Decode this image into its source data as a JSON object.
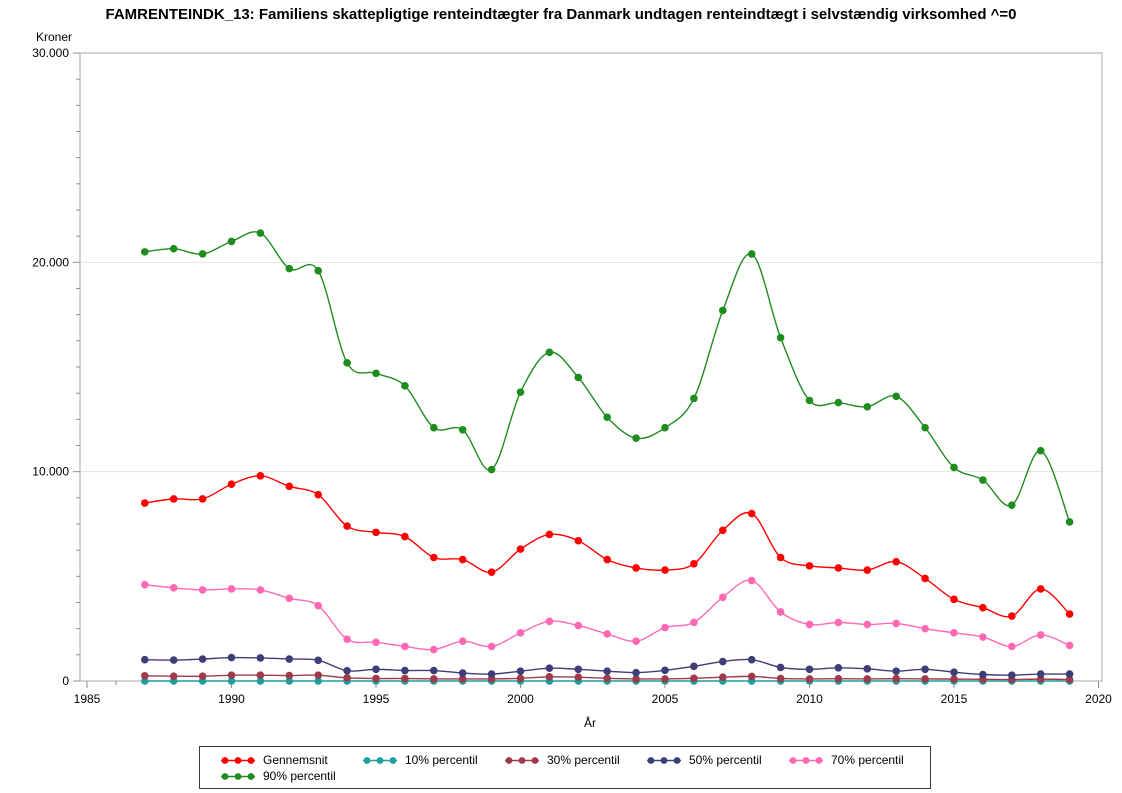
{
  "title": "FAMRENTEINDK_13: Familiens skattepligtige renteindtægter fra Danmark undtagen renteindtægt i selvstændig virksomhed ^=0",
  "chart_data": {
    "type": "line",
    "xlabel": "År",
    "ylabel": "Kroner",
    "xlim": [
      1985,
      2020
    ],
    "ylim": [
      0,
      30000
    ],
    "grid": true,
    "legend_position": "bottom",
    "x_ticks": [
      {
        "value": 1985,
        "label": "1985"
      },
      {
        "value": 1990,
        "label": "1990"
      },
      {
        "value": 1995,
        "label": "1995"
      },
      {
        "value": 2000,
        "label": "2000"
      },
      {
        "value": 2005,
        "label": "2005"
      },
      {
        "value": 2010,
        "label": "2010"
      },
      {
        "value": 2015,
        "label": "2015"
      },
      {
        "value": 2020,
        "label": "2020"
      }
    ],
    "y_ticks": [
      {
        "value": 0,
        "label": "0"
      },
      {
        "value": 10000,
        "label": "10.000"
      },
      {
        "value": 20000,
        "label": "20.000"
      },
      {
        "value": 30000,
        "label": "30.000"
      }
    ],
    "minor_x_step": 1,
    "minor_y_step": 1250,
    "x": [
      1987,
      1988,
      1989,
      1990,
      1991,
      1992,
      1993,
      1994,
      1995,
      1996,
      1997,
      1998,
      1999,
      2000,
      2001,
      2002,
      2003,
      2004,
      2005,
      2006,
      2007,
      2008,
      2009,
      2010,
      2011,
      2012,
      2013,
      2014,
      2015,
      2016,
      2017,
      2018,
      2019
    ],
    "series": [
      {
        "name": "Gennemsnit",
        "color": "#fe0000",
        "values": [
          8500,
          8700,
          8700,
          9400,
          9800,
          9300,
          8900,
          7400,
          7100,
          6900,
          5900,
          5800,
          5200,
          6300,
          7000,
          6700,
          5800,
          5400,
          5300,
          5600,
          7200,
          8000,
          5900,
          5500,
          5400,
          5300,
          5700,
          4900,
          3900,
          3500,
          3100,
          4400,
          3200
        ]
      },
      {
        "name": "10% percentil",
        "color": "#1f9e9e",
        "values": [
          0,
          0,
          0,
          0,
          0,
          0,
          0,
          0,
          0,
          0,
          0,
          0,
          0,
          0,
          0,
          0,
          0,
          0,
          0,
          0,
          0,
          0,
          0,
          0,
          0,
          0,
          0,
          0,
          0,
          0,
          0,
          0,
          0
        ]
      },
      {
        "name": "30% percentil",
        "color": "#9e3a4c",
        "values": [
          250,
          230,
          230,
          280,
          280,
          260,
          280,
          150,
          120,
          120,
          100,
          100,
          100,
          130,
          200,
          180,
          130,
          100,
          100,
          130,
          180,
          220,
          120,
          100,
          110,
          100,
          110,
          100,
          90,
          80,
          70,
          90,
          70
        ]
      },
      {
        "name": "50% percentil",
        "color": "#3d3d77",
        "values": [
          1020,
          1000,
          1050,
          1120,
          1100,
          1050,
          990,
          490,
          560,
          500,
          500,
          380,
          330,
          470,
          610,
          560,
          470,
          400,
          510,
          700,
          930,
          1020,
          650,
          560,
          630,
          580,
          470,
          560,
          420,
          310,
          280,
          330,
          330
        ]
      },
      {
        "name": "70% percentil",
        "color": "#ff69b4",
        "values": [
          4600,
          4450,
          4350,
          4400,
          4350,
          3950,
          3600,
          2000,
          1850,
          1650,
          1500,
          1900,
          1650,
          2300,
          2850,
          2650,
          2250,
          1900,
          2550,
          2800,
          4000,
          4800,
          3300,
          2700,
          2800,
          2700,
          2750,
          2500,
          2300,
          2100,
          1650,
          2200,
          1700
        ]
      },
      {
        "name": "90% percentil",
        "color": "#1f8c1f",
        "values": [
          20500,
          20650,
          20400,
          21000,
          21400,
          19700,
          19600,
          15200,
          14700,
          14100,
          12100,
          12000,
          10100,
          13800,
          15700,
          14500,
          12600,
          11600,
          12100,
          13500,
          17700,
          20400,
          16400,
          13400,
          13300,
          13100,
          13600,
          12100,
          10200,
          9600,
          8400,
          11000,
          7600
        ]
      }
    ]
  },
  "style_colors": {
    "grid": "#e2e2e2",
    "frame": "#a9a9a9",
    "tick": "#8f8f8f",
    "text": "#000000"
  }
}
